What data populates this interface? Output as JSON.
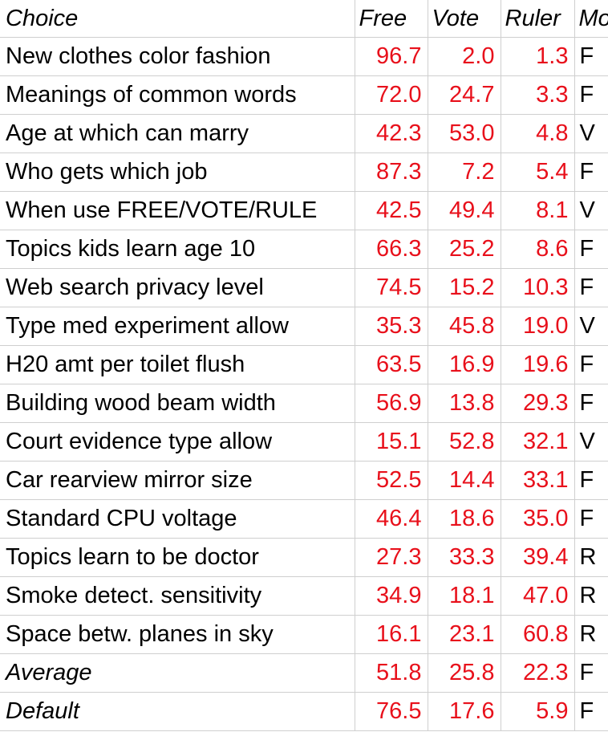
{
  "headers": [
    "Choice",
    "Free",
    "Vote",
    "Ruler",
    "Mo"
  ],
  "rows": [
    {
      "choice": "New clothes color fashion",
      "free": "96.7",
      "vote": "2.0",
      "ruler": "1.3",
      "mode": "F"
    },
    {
      "choice": "Meanings of common words",
      "free": "72.0",
      "vote": "24.7",
      "ruler": "3.3",
      "mode": "F"
    },
    {
      "choice": "Age at which can marry",
      "free": "42.3",
      "vote": "53.0",
      "ruler": "4.8",
      "mode": "V"
    },
    {
      "choice": "Who gets which job",
      "free": "87.3",
      "vote": "7.2",
      "ruler": "5.4",
      "mode": "F"
    },
    {
      "choice": "When use FREE/VOTE/RULE",
      "free": "42.5",
      "vote": "49.4",
      "ruler": "8.1",
      "mode": "V"
    },
    {
      "choice": "Topics kids learn age 10",
      "free": "66.3",
      "vote": "25.2",
      "ruler": "8.6",
      "mode": "F"
    },
    {
      "choice": "Web search privacy level",
      "free": "74.5",
      "vote": "15.2",
      "ruler": "10.3",
      "mode": "F"
    },
    {
      "choice": "Type med experiment allow",
      "free": "35.3",
      "vote": "45.8",
      "ruler": "19.0",
      "mode": "V"
    },
    {
      "choice": "H20 amt per toilet flush",
      "free": "63.5",
      "vote": "16.9",
      "ruler": "19.6",
      "mode": "F"
    },
    {
      "choice": "Building wood beam width",
      "free": "56.9",
      "vote": "13.8",
      "ruler": "29.3",
      "mode": "F"
    },
    {
      "choice": "Court evidence type allow",
      "free": "15.1",
      "vote": "52.8",
      "ruler": "32.1",
      "mode": "V"
    },
    {
      "choice": "Car rearview mirror size",
      "free": "52.5",
      "vote": "14.4",
      "ruler": "33.1",
      "mode": "F"
    },
    {
      "choice": "Standard CPU voltage",
      "free": "46.4",
      "vote": "18.6",
      "ruler": "35.0",
      "mode": "F"
    },
    {
      "choice": "Topics learn to be doctor",
      "free": "27.3",
      "vote": "33.3",
      "ruler": "39.4",
      "mode": "R"
    },
    {
      "choice": "Smoke detect. sensitivity",
      "free": "34.9",
      "vote": "18.1",
      "ruler": "47.0",
      "mode": "R"
    },
    {
      "choice": "Space betw. planes in sky",
      "free": "16.1",
      "vote": "23.1",
      "ruler": "60.8",
      "mode": "R"
    },
    {
      "choice": "Average",
      "free": "51.8",
      "vote": "25.8",
      "ruler": "22.3",
      "mode": "F",
      "italic": true
    },
    {
      "choice": "Default",
      "free": "76.5",
      "vote": "17.6",
      "ruler": "5.9",
      "mode": "F",
      "italic": true
    }
  ],
  "colors": {
    "value_text": "#e8101b",
    "label_text": "#000000",
    "gridline": "#cfcfcf"
  }
}
